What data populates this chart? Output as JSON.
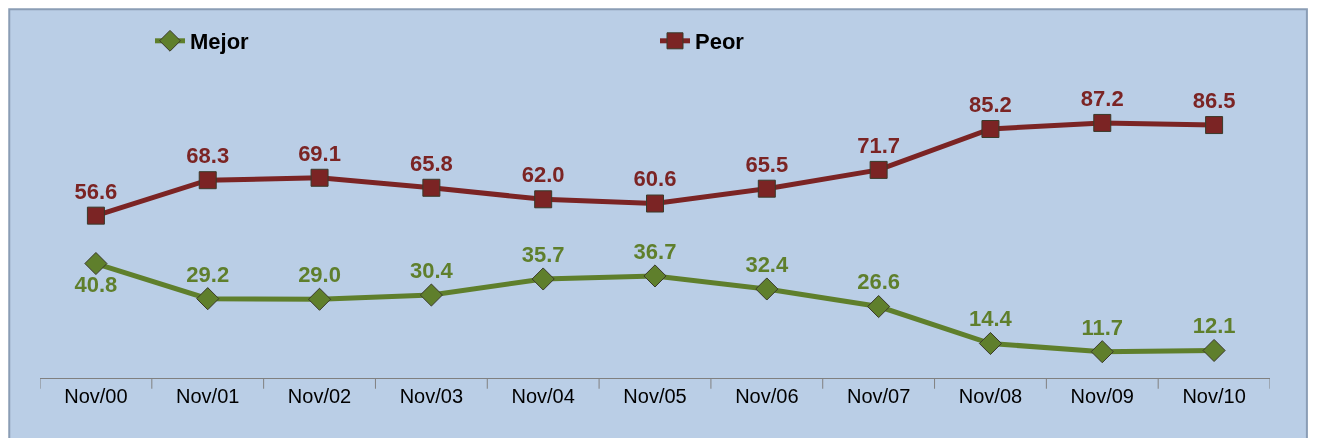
{
  "chart_data": {
    "type": "line",
    "categories": [
      "Nov/00",
      "Nov/01",
      "Nov/02",
      "Nov/03",
      "Nov/04",
      "Nov/05",
      "Nov/06",
      "Nov/07",
      "Nov/08",
      "Nov/09",
      "Nov/10"
    ],
    "series": [
      {
        "name": "Mejor",
        "color": "#5f7f2c",
        "marker": "diamond",
        "values": [
          40.8,
          29.2,
          29.0,
          30.4,
          35.7,
          36.7,
          32.4,
          26.6,
          14.4,
          11.7,
          12.1
        ],
        "value_labels": [
          "40.8",
          "29.2",
          "29.0",
          "30.4",
          "35.7",
          "36.7",
          "32.4",
          "26.6",
          "14.4",
          "11.7",
          "12.1"
        ]
      },
      {
        "name": "Peor",
        "color": "#7b2424",
        "marker": "square",
        "values": [
          56.6,
          68.3,
          69.1,
          65.8,
          62.0,
          60.6,
          65.5,
          71.7,
          85.2,
          87.2,
          86.5
        ],
        "value_labels": [
          "56.6",
          "68.3",
          "69.1",
          "65.8",
          "62.0",
          "60.6",
          "65.5",
          "71.7",
          "85.2",
          "87.2",
          "86.5"
        ]
      }
    ],
    "legend": "top",
    "grid": false,
    "line_style": "solid",
    "tick_labels": "x"
  }
}
